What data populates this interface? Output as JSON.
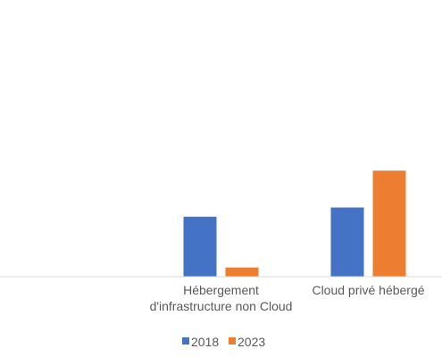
{
  "chart_data": {
    "type": "bar",
    "categories": [
      "",
      [
        "Hébergement",
        "d'infrastructure non Cloud"
      ],
      [
        "Cloud privé hébergé"
      ]
    ],
    "series": [
      {
        "name": "2018",
        "color": "#4472C4",
        "values": [
          0,
          13,
          15
        ]
      },
      {
        "name": "2023",
        "color": "#ED7D31",
        "values": [
          0,
          2,
          23
        ]
      }
    ],
    "ylim": [
      0,
      60
    ],
    "grid": false,
    "legend_position": "bottom",
    "axis_color": "#D9D9D9"
  }
}
